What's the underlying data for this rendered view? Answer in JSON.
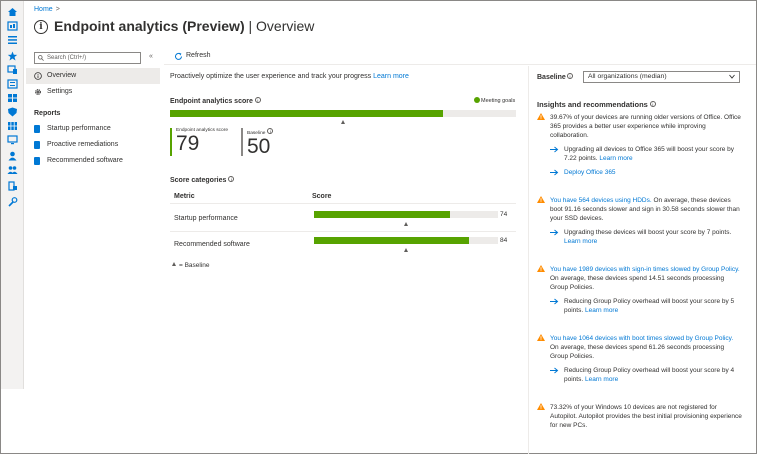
{
  "breadcrumb": {
    "home": "Home",
    "separator": ">"
  },
  "page": {
    "title_bold": "Endpoint analytics (Preview)",
    "title_rest": "| Overview"
  },
  "sidebar": {
    "search_placeholder": "Search (Ctrl+/)",
    "collapse_label": "«",
    "nav": [
      {
        "label": "Overview",
        "icon": "info-icon",
        "active": true
      },
      {
        "label": "Settings",
        "icon": "gear-icon",
        "active": false
      }
    ],
    "reports_header": "Reports",
    "reports": [
      {
        "label": "Startup performance",
        "icon": "report-icon"
      },
      {
        "label": "Proactive remediations",
        "icon": "report-icon"
      },
      {
        "label": "Recommended software",
        "icon": "report-icon"
      }
    ]
  },
  "toolbar": {
    "refresh_label": "Refresh"
  },
  "main": {
    "intro_text": "Proactively optimize the user experience and track your progress",
    "intro_link": "Learn more",
    "score_header": "Endpoint analytics score",
    "meeting_goals": "Meeting goals",
    "score_fraction": 0.79,
    "baseline_fraction": 0.5,
    "score_label": "Endpoint analytics score",
    "score_value": "79",
    "baseline_label": "Baseline",
    "baseline_value": "50",
    "categories_header": "Score categories",
    "col_metric": "Metric",
    "col_score": "Score",
    "categories": [
      {
        "name": "Startup performance",
        "value": "74",
        "fraction": 0.74,
        "baseline": 0.5
      },
      {
        "name": "Recommended software",
        "value": "84",
        "fraction": 0.84,
        "baseline": 0.5
      }
    ],
    "legend": "= Baseline"
  },
  "right": {
    "baseline_label": "Baseline",
    "baseline_select": "All organizations (median)",
    "insights_header": "Insights and recommendations",
    "insights": [
      {
        "text": "39.67% of your devices are running older versions of Office. Office 365 provides a better user experience while improving collaboration.",
        "actions": [
          {
            "text": "Upgrading all devices to Office 365 will boost your score by 7.22 points.",
            "link": "Learn more"
          },
          {
            "text": "",
            "link": "Deploy Office 365"
          }
        ]
      },
      {
        "link_text": "You have 564 devices using HDDs.",
        "text": "On average, these devices boot 91.16 seconds slower and sign in 30.58 seconds slower than your SSD devices.",
        "actions": [
          {
            "text": "Upgrading these devices will boost your score by 7 points.",
            "link": "Learn more"
          }
        ]
      },
      {
        "link_text": "You have 1989 devices with sign-in times slowed by Group Policy.",
        "text": "On average, these devices spend 14.51 seconds processing Group Policies.",
        "actions": [
          {
            "text": "Reducing Group Policy overhead will boost your score by 5 points.",
            "link": "Learn more"
          }
        ]
      },
      {
        "link_text": "You have 1064 devices with boot times slowed by Group Policy.",
        "text": "On average, these devices spend 61.26 seconds processing Group Policies.",
        "actions": [
          {
            "text": "Reducing Group Policy overhead will boost your score by 4 points.",
            "link": "Learn more"
          }
        ]
      },
      {
        "text": "73.32% of your Windows 10 devices are not registered for Autopilot. Autopilot provides the best initial provisioning experience for new PCs.",
        "actions": []
      }
    ]
  },
  "colors": {
    "accent": "#0078d4",
    "score_green": "#57a300",
    "warning": "#ff8c00"
  }
}
